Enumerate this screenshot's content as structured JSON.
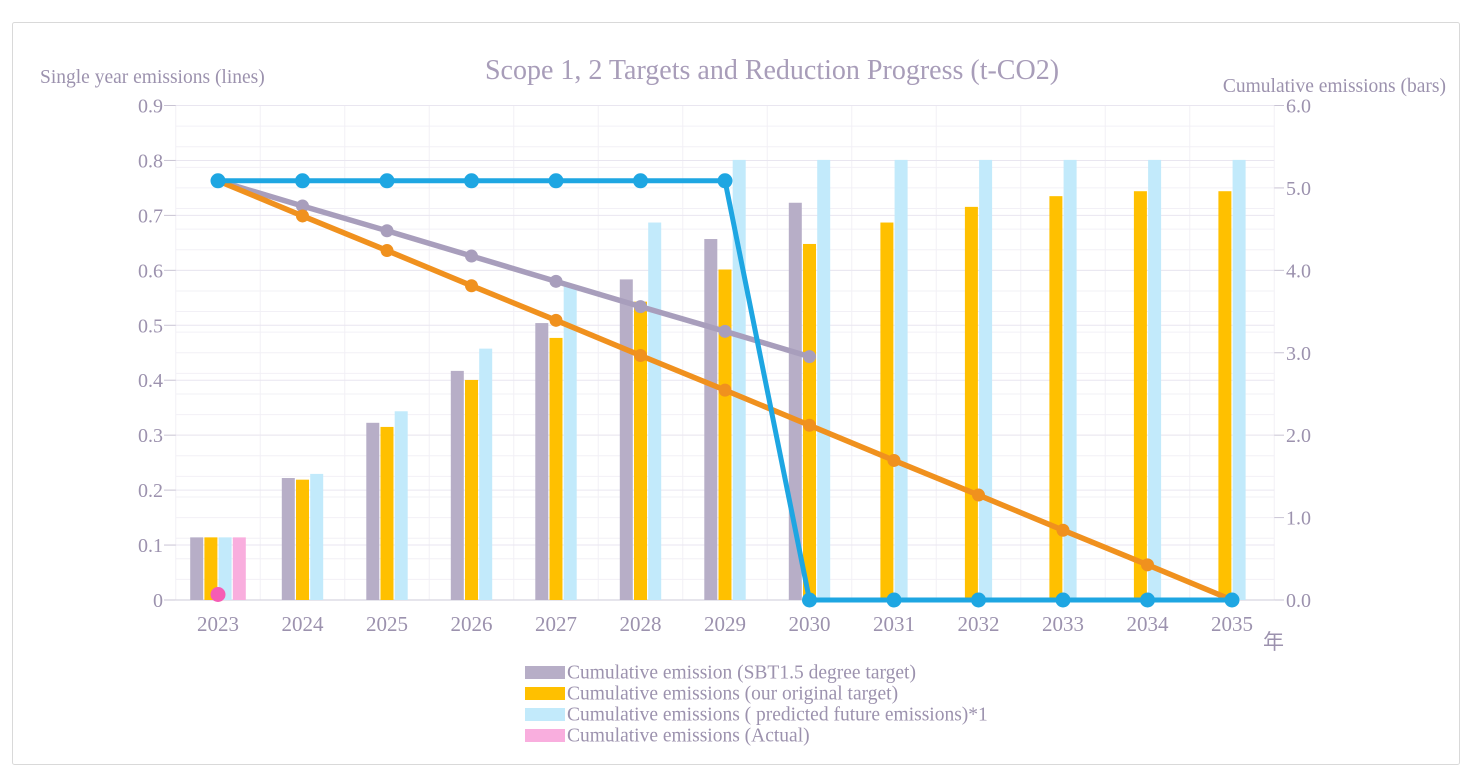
{
  "chart_data": {
    "type": "bar+line combo, dual axis",
    "title": "Scope 1, 2 Targets and Reduction Progress (t-CO2)",
    "left_axis": {
      "title": "Single year emissions (lines)",
      "min": 0,
      "max": 0.9,
      "tick_step": 0.1,
      "tick_labels": [
        "0",
        "0.1",
        "0.2",
        "0.3",
        "0.4",
        "0.5",
        "0.6",
        "0.7",
        "0.8",
        "0.9"
      ]
    },
    "right_axis": {
      "title": "Cumulative emissions (bars)",
      "min": 0,
      "max": 6.0,
      "tick_step": 1.0,
      "gridline_step": 0.25,
      "tick_labels": [
        "0.0",
        "1.0",
        "2.0",
        "3.0",
        "4.0",
        "5.0",
        "6.0"
      ]
    },
    "x_axis": {
      "unit_label": "年",
      "categories": [
        "2023",
        "2024",
        "2025",
        "2026",
        "2027",
        "2028",
        "2029",
        "2030",
        "2031",
        "2032",
        "2033",
        "2034",
        "2035"
      ]
    },
    "bar_series": [
      {
        "id": "sbt15",
        "legend_label": "Cumulative emission (SBT1.5 degree target)",
        "color": "#b7aec7",
        "values": [
          0.76,
          1.48,
          2.15,
          2.78,
          3.36,
          3.89,
          4.38,
          4.82,
          null,
          null,
          null,
          null,
          null
        ]
      },
      {
        "id": "original-target",
        "legend_label": "Cumulative emissions (our original target)",
        "color": "#ffc000",
        "values": [
          0.76,
          1.46,
          2.1,
          2.67,
          3.18,
          3.62,
          4.01,
          4.32,
          4.58,
          4.77,
          4.9,
          4.96,
          4.96
        ]
      },
      {
        "id": "predicted",
        "legend_label": "Cumulative emissions ( predicted future emissions)*1",
        "color": "#c2eafb",
        "values": [
          0.76,
          1.53,
          2.29,
          3.05,
          3.82,
          4.58,
          5.34,
          5.34,
          5.34,
          5.34,
          5.34,
          5.34,
          5.34
        ]
      },
      {
        "id": "actual",
        "legend_label": "Cumulative emissions (Actual)",
        "color": "#f9aede",
        "values": [
          0.76,
          null,
          null,
          null,
          null,
          null,
          null,
          null,
          null,
          null,
          null,
          null,
          null
        ]
      }
    ],
    "line_series": [
      {
        "id": "sbt15",
        "color": "#a89ebc",
        "stroke_width": 5.5,
        "marker_radius": 6.5,
        "values": [
          0.763,
          0.717,
          0.672,
          0.626,
          0.58,
          0.534,
          0.489,
          0.443,
          null,
          null,
          null,
          null,
          null
        ]
      },
      {
        "id": "original-target",
        "color": "#f0911e",
        "stroke_width": 5.5,
        "marker_radius": 6.5,
        "values": [
          0.763,
          0.699,
          0.636,
          0.572,
          0.509,
          0.445,
          0.382,
          0.318,
          0.254,
          0.191,
          0.127,
          0.064,
          0
        ]
      },
      {
        "id": "predicted",
        "color": "#1ea6e2",
        "stroke_width": 5,
        "marker_radius": 7.5,
        "values": [
          0.763,
          0.763,
          0.763,
          0.763,
          0.763,
          0.763,
          0.763,
          0,
          0,
          0,
          0,
          0,
          0
        ]
      },
      {
        "id": "actual",
        "color": "#f65cb5",
        "stroke_width": 5,
        "marker_radius": 7.5,
        "values": [
          0.01,
          null,
          null,
          null,
          null,
          null,
          null,
          null,
          null,
          null,
          null,
          null,
          null
        ]
      }
    ],
    "legend_position": "bottom-center",
    "grid_on": true,
    "colors": {
      "text": "#9c92ae",
      "title_text": "#a89db9",
      "grid_major": "#e9e6f0",
      "grid_minor": "#f2f0f6",
      "zero_axis_line": "#d8d5e0",
      "tick_mark": "#c9c4d4",
      "card_border": "#d9d9d9"
    }
  }
}
